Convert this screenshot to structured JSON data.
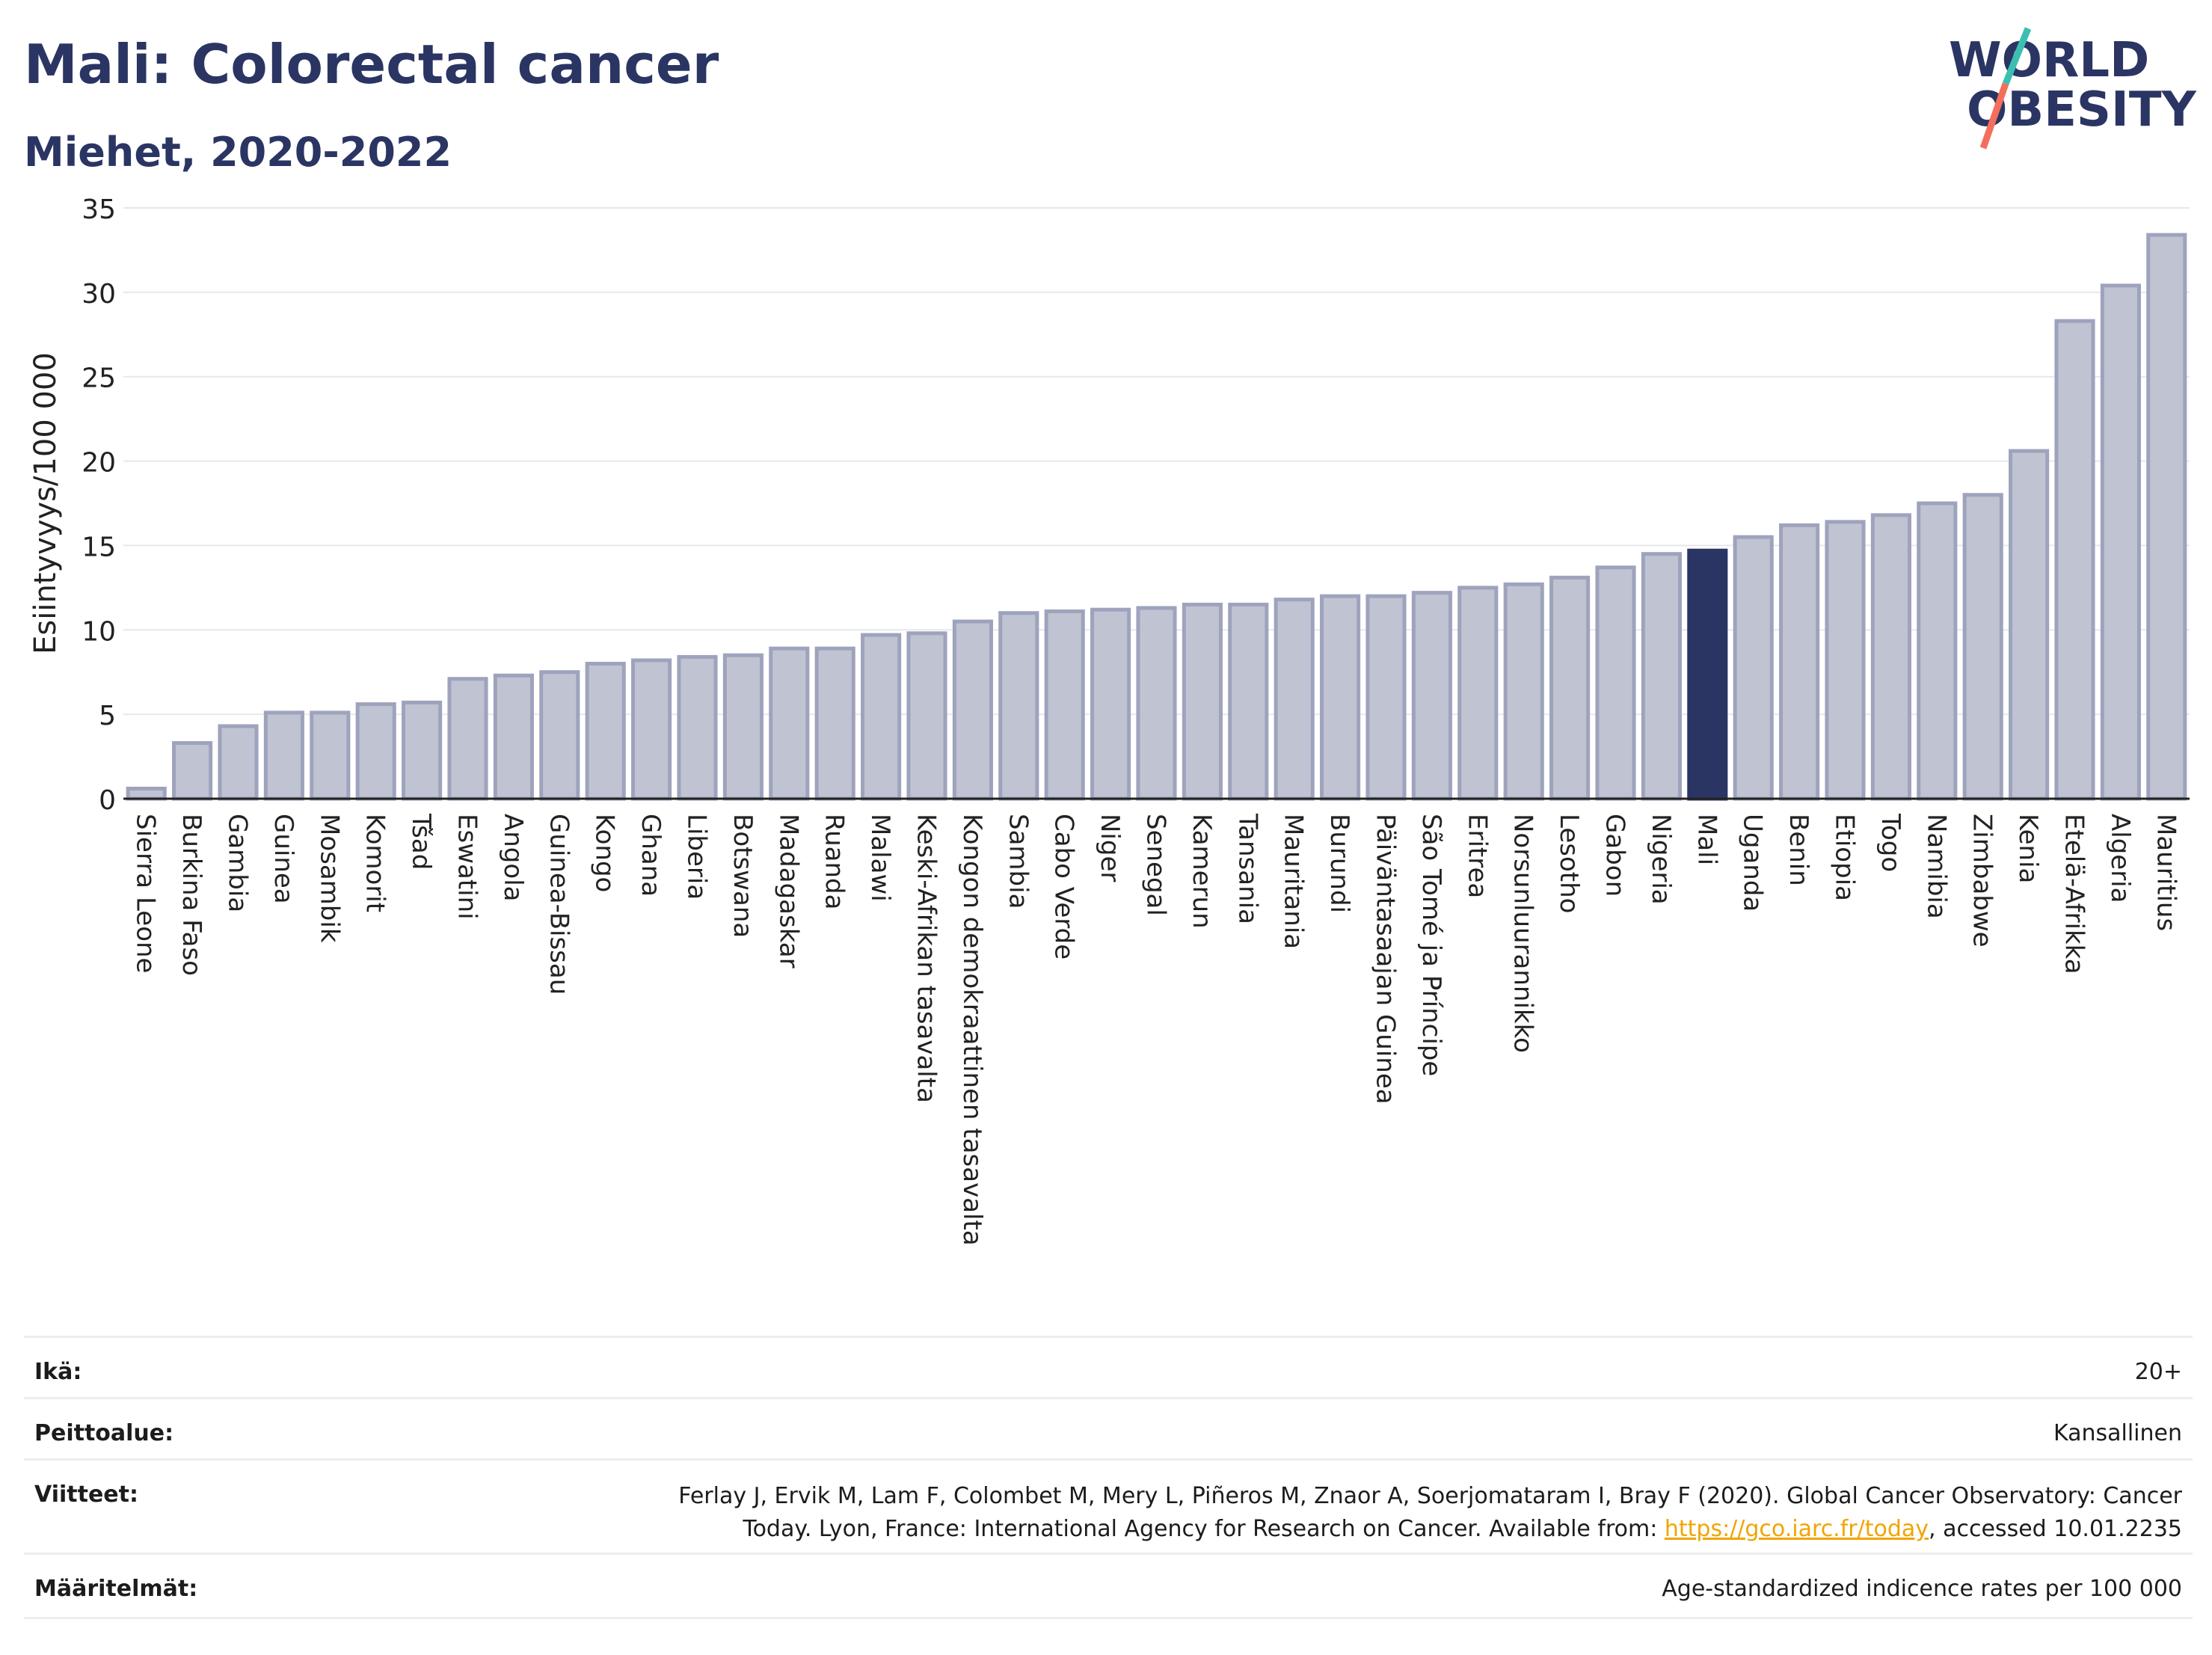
{
  "header": {
    "title": "Mali: Colorectal cancer",
    "subtitle": "Miehet, 2020-2022",
    "logo_text_1": "WORLD",
    "logo_text_2": "OBESITY"
  },
  "colors": {
    "bar_default": "#c0c3d2",
    "bar_default_stroke": "#9ea3bd",
    "bar_highlight": "#2a3563",
    "title": "#2a3563",
    "link": "#f0a500",
    "logo_teal": "#3bbfb2",
    "logo_coral": "#f26f5b"
  },
  "chart_data": {
    "type": "bar",
    "title": "Mali: Colorectal cancer",
    "subtitle": "Miehet, 2020-2022",
    "xlabel": "",
    "ylabel": "Esiintyvyys/100 000",
    "ylim": [
      0,
      35
    ],
    "yticks": [
      0,
      5,
      10,
      15,
      20,
      25,
      30,
      35
    ],
    "grid": true,
    "highlight": "Mali",
    "categories": [
      "Sierra Leone",
      "Burkina Faso",
      "Gambia",
      "Guinea",
      "Mosambik",
      "Komorit",
      "Tšad",
      "Eswatini",
      "Angola",
      "Guinea-Bissau",
      "Kongo",
      "Ghana",
      "Liberia",
      "Botswana",
      "Madagaskar",
      "Ruanda",
      "Malawi",
      "Keski-Afrikan tasavalta",
      "Kongon demokraattinen tasavalta",
      "Sambia",
      "Cabo Verde",
      "Niger",
      "Senegal",
      "Kamerun",
      "Tansania",
      "Mauritania",
      "Burundi",
      "Päiväntasaajan Guinea",
      "São Tomé ja Príncipe",
      "Eritrea",
      "Norsunluurannikko",
      "Lesotho",
      "Gabon",
      "Nigeria",
      "Mali",
      "Uganda",
      "Benin",
      "Etiopia",
      "Togo",
      "Namibia",
      "Zimbabwe",
      "Kenia",
      "Etelä-Afrikka",
      "Algeria",
      "Mauritius"
    ],
    "values": [
      0.6,
      3.3,
      4.3,
      5.1,
      5.1,
      5.6,
      5.7,
      7.1,
      7.3,
      7.5,
      8.0,
      8.2,
      8.4,
      8.5,
      8.9,
      8.9,
      9.7,
      9.8,
      10.5,
      11.0,
      11.1,
      11.2,
      11.3,
      11.5,
      11.5,
      11.8,
      12.0,
      12.0,
      12.2,
      12.5,
      12.7,
      13.1,
      13.7,
      14.5,
      14.7,
      15.5,
      16.2,
      16.4,
      16.8,
      17.5,
      18.0,
      20.6,
      28.3,
      30.4,
      33.4
    ]
  },
  "meta": {
    "age_label": "Ikä:",
    "age_value": "20+",
    "coverage_label": "Peittoalue:",
    "coverage_value": "Kansallinen",
    "references_label": "Viitteet:",
    "references_line1": "Ferlay J, Ervik M, Lam F, Colombet M, Mery L, Piñeros M, Znaor A, Soerjomataram I, Bray F (2020). Global Cancer Observatory: Cancer",
    "references_line2_before": "Today. Lyon, France: International Agency for Research on Cancer. Available from: ",
    "references_link": "https://gco.iarc.fr/today",
    "references_line2_after": ", accessed 10.01.2235",
    "definitions_label": "Määritelmät:",
    "definitions_value": "Age-standardized indicence rates per 100 000"
  }
}
